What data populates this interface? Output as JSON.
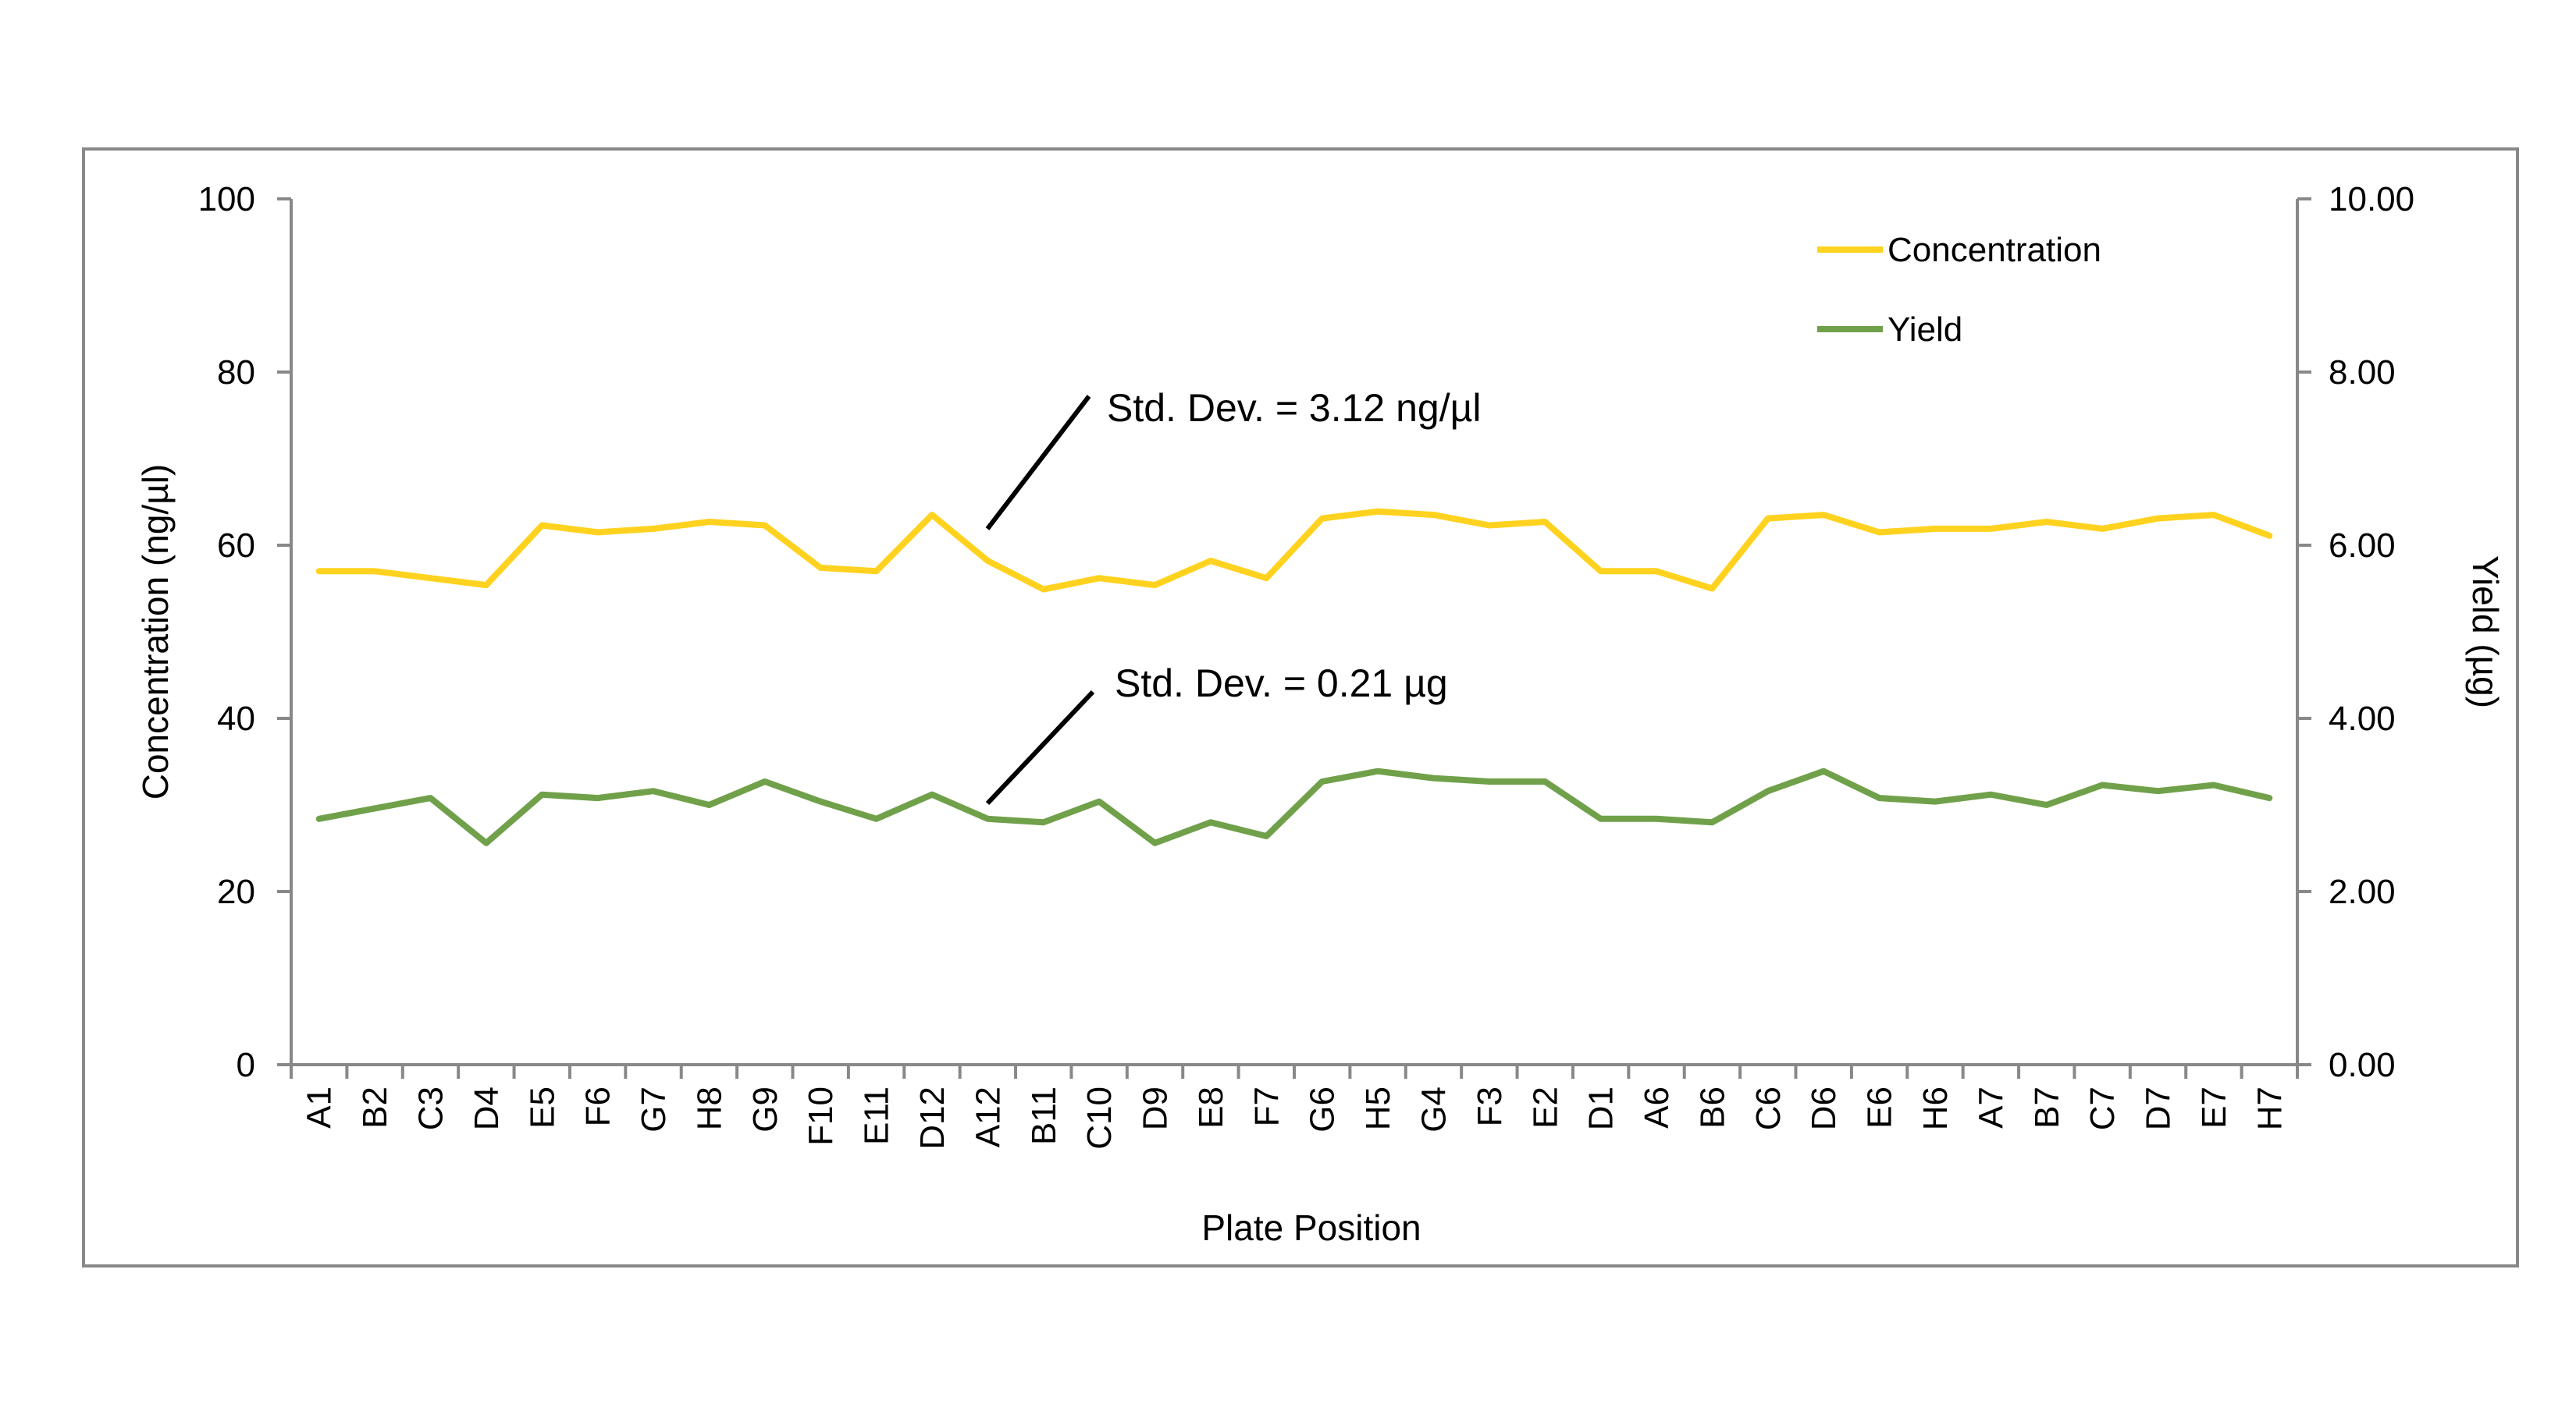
{
  "chart_data": {
    "type": "line",
    "title": "",
    "xlabel": "Plate Position",
    "ylabel": "Concentration (ng/µl)",
    "y2label": "Yield (µg)",
    "categories": [
      "A1",
      "B2",
      "C3",
      "D4",
      "E5",
      "F6",
      "G7",
      "H8",
      "G9",
      "F10",
      "E11",
      "D12",
      "A12",
      "B11",
      "C10",
      "D9",
      "E8",
      "F7",
      "G6",
      "H5",
      "G4",
      "F3",
      "E2",
      "D1",
      "A6",
      "B6",
      "C6",
      "D6",
      "E6",
      "H6",
      "A7",
      "B7",
      "C7",
      "D7",
      "E7",
      "H7"
    ],
    "ylim": [
      0,
      100
    ],
    "y2lim": [
      0,
      10
    ],
    "yticks": [
      "0",
      "20",
      "40",
      "60",
      "80",
      "100"
    ],
    "y2ticks": [
      "0.00",
      "2.00",
      "4.00",
      "6.00",
      "8.00",
      "10.00"
    ],
    "grid": false,
    "legend_position": "top-right",
    "series": [
      {
        "name": "Concentration",
        "axis": "left",
        "color": "#FFD21F",
        "values": [
          57.0,
          57.0,
          56.2,
          55.4,
          62.3,
          61.5,
          61.9,
          62.7,
          62.3,
          57.4,
          57.0,
          63.5,
          58.2,
          54.9,
          56.2,
          55.4,
          58.2,
          56.2,
          63.1,
          63.9,
          63.5,
          62.3,
          62.7,
          57.0,
          57.0,
          55.0,
          63.1,
          63.5,
          61.5,
          61.9,
          61.9,
          62.7,
          61.9,
          63.1,
          63.5,
          61.1
        ]
      },
      {
        "name": "Yield",
        "axis": "right",
        "color": "#70A14A",
        "values": [
          2.84,
          2.96,
          3.08,
          2.56,
          3.12,
          3.08,
          3.16,
          3.0,
          3.27,
          3.04,
          2.84,
          3.12,
          2.84,
          2.8,
          3.04,
          2.56,
          2.8,
          2.64,
          3.27,
          3.39,
          3.31,
          3.27,
          3.27,
          2.84,
          2.84,
          2.8,
          3.16,
          3.39,
          3.08,
          3.04,
          3.12,
          3.0,
          3.23,
          3.16,
          3.23,
          3.08
        ]
      }
    ],
    "annotations": [
      {
        "text": "Std. Dev. = 3.12 ng/µl",
        "target_series": "Concentration"
      },
      {
        "text": "Std. Dev. = 0.21 µg",
        "target_series": "Yield"
      }
    ]
  }
}
